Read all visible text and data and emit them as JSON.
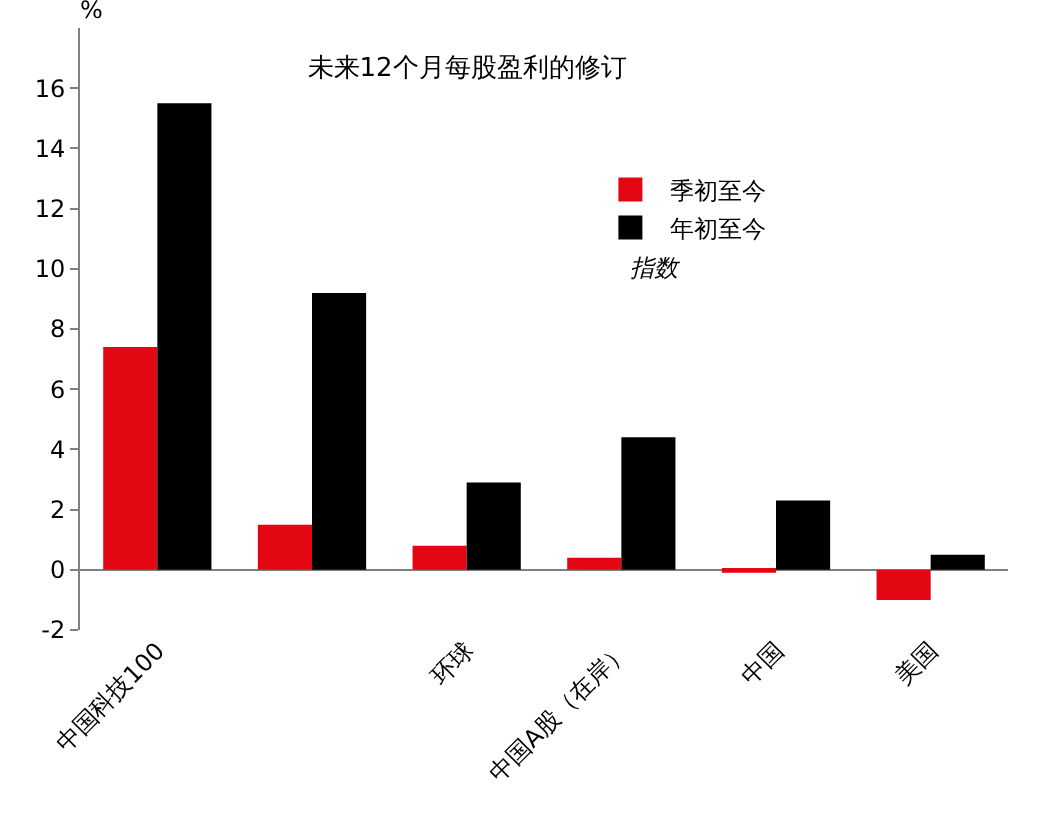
{
  "chart_data": {
    "type": "bar",
    "title": "未来12个月每股盈利的修订",
    "ylabel": "%",
    "categories": [
      "中国科技100",
      null,
      "环球",
      "中国A股（在岸）",
      "中国",
      "美国"
    ],
    "series": [
      {
        "name": "季初至今",
        "color": "#e30613",
        "values": [
          7.4,
          1.5,
          0.8,
          0.4,
          -0.1,
          -1.0
        ]
      },
      {
        "name": "年初至今",
        "color": "#000000",
        "values": [
          15.5,
          9.2,
          2.9,
          4.4,
          2.3,
          0.5
        ]
      }
    ],
    "ylim": [
      -2,
      18
    ],
    "yticks": [
      -2,
      0,
      2,
      4,
      6,
      8,
      10,
      12,
      14,
      16
    ],
    "legend": "right",
    "annotations": [
      "指数"
    ]
  }
}
